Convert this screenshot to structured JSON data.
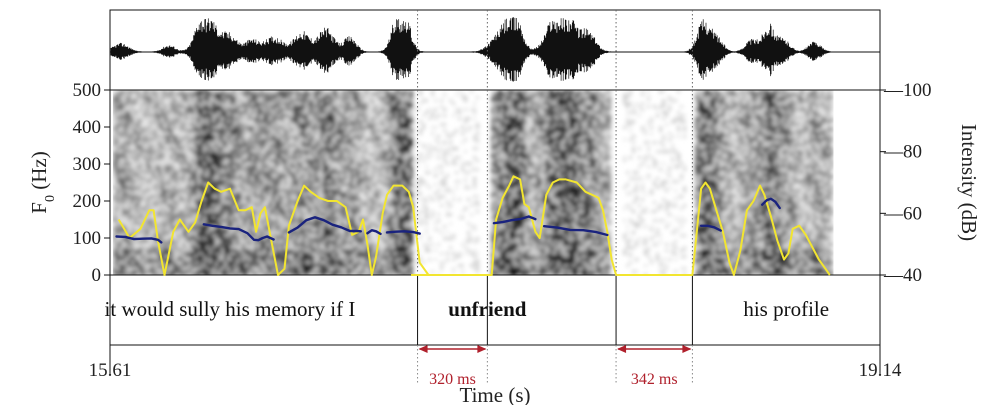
{
  "chart_data": {
    "type": "line",
    "title": "",
    "xlabel": "Time (s)",
    "ylabel_left": "F0 (Hz)",
    "ylabel_right": "Intensity (dB)",
    "xlim": [
      15.61,
      19.14
    ],
    "ylim_left": [
      0,
      500
    ],
    "ylim_right": [
      40,
      100
    ],
    "x_tick_labels": [
      "15.61",
      "19.14"
    ],
    "y_left_ticks": [
      "0",
      "100",
      "200",
      "300",
      "400",
      "500"
    ],
    "y_right_ticks": [
      "40",
      "60",
      "80",
      "100"
    ],
    "grid": false,
    "panels": [
      "waveform",
      "spectrogram",
      "word-tier"
    ],
    "colors": {
      "f0": "#1a237e",
      "intensity": "#f2e530",
      "gap_marker": "#b0202c",
      "waveform": "#111111"
    },
    "series": [
      {
        "axis": "left",
        "segments": [
          [
            [
              15.64,
              104
            ],
            [
              15.68,
              103
            ],
            [
              15.72,
              97
            ],
            [
              15.76,
              98
            ],
            [
              15.8,
              99
            ],
            [
              15.83,
              95
            ],
            [
              15.845,
              88
            ]
          ],
          [
            [
              16.04,
              137
            ],
            [
              16.08,
              133
            ],
            [
              16.12,
              130
            ],
            [
              16.16,
              126
            ],
            [
              16.2,
              124
            ],
            [
              16.24,
              113
            ],
            [
              16.27,
              95
            ],
            [
              16.29,
              94
            ],
            [
              16.31,
              100
            ],
            [
              16.33,
              104
            ],
            [
              16.36,
              96
            ]
          ],
          [
            [
              16.43,
              115
            ],
            [
              16.47,
              128
            ],
            [
              16.51,
              148
            ],
            [
              16.55,
              156
            ],
            [
              16.59,
              148
            ],
            [
              16.63,
              136
            ],
            [
              16.67,
              129
            ],
            [
              16.71,
              119
            ],
            [
              16.74,
              119
            ],
            [
              16.76,
              118
            ]
          ],
          [
            [
              16.79,
              113
            ],
            [
              16.81,
              121
            ],
            [
              16.83,
              118
            ],
            [
              16.85,
              111
            ]
          ],
          [
            [
              16.88,
              115
            ],
            [
              16.92,
              117
            ],
            [
              16.96,
              118
            ],
            [
              17.0,
              116
            ],
            [
              17.03,
              112
            ]
          ],
          [
            [
              17.37,
              140
            ],
            [
              17.41,
              143
            ],
            [
              17.45,
              148
            ],
            [
              17.49,
              151
            ],
            [
              17.53,
              158
            ],
            [
              17.56,
              151
            ]
          ],
          [
            [
              17.6,
              132
            ],
            [
              17.66,
              128
            ],
            [
              17.72,
              122
            ],
            [
              17.78,
              121
            ],
            [
              17.84,
              116
            ],
            [
              17.89,
              108
            ]
          ],
          [
            [
              18.32,
              133
            ],
            [
              18.35,
              133
            ],
            [
              18.38,
              129
            ],
            [
              18.41,
              120
            ]
          ],
          [
            [
              18.6,
              190
            ],
            [
              18.62,
              202
            ],
            [
              18.64,
              206
            ],
            [
              18.66,
              198
            ],
            [
              18.68,
              181
            ]
          ]
        ]
      },
      {
        "axis": "right",
        "points": [
          [
            15.65,
            58
          ],
          [
            15.7,
            52
          ],
          [
            15.75,
            55
          ],
          [
            15.79,
            61
          ],
          [
            15.81,
            61
          ],
          [
            15.83,
            51
          ],
          [
            15.86,
            40
          ],
          [
            15.9,
            54
          ],
          [
            15.93,
            58
          ],
          [
            15.97,
            54
          ],
          [
            16.0,
            57
          ],
          [
            16.03,
            64
          ],
          [
            16.06,
            70
          ],
          [
            16.09,
            68
          ],
          [
            16.12,
            67
          ],
          [
            16.16,
            68
          ],
          [
            16.2,
            61
          ],
          [
            16.23,
            61
          ],
          [
            16.26,
            62
          ],
          [
            16.28,
            54
          ],
          [
            16.3,
            60
          ],
          [
            16.32,
            62
          ],
          [
            16.35,
            51
          ],
          [
            16.38,
            40
          ],
          [
            16.41,
            42
          ],
          [
            16.43,
            56
          ],
          [
            16.47,
            64
          ],
          [
            16.5,
            69
          ],
          [
            16.53,
            67
          ],
          [
            16.57,
            65
          ],
          [
            16.61,
            64
          ],
          [
            16.65,
            64
          ],
          [
            16.69,
            62
          ],
          [
            16.72,
            53
          ],
          [
            16.75,
            54
          ],
          [
            16.77,
            58
          ],
          [
            16.79,
            50
          ],
          [
            16.81,
            40
          ],
          [
            16.83,
            46
          ],
          [
            16.86,
            60
          ],
          [
            16.88,
            66
          ],
          [
            16.91,
            69
          ],
          [
            16.95,
            69
          ],
          [
            16.98,
            67
          ],
          [
            17.0,
            62
          ],
          [
            17.03,
            44
          ],
          [
            17.07,
            40
          ],
          [
            17.36,
            40
          ],
          [
            17.38,
            58
          ],
          [
            17.41,
            65
          ],
          [
            17.44,
            69
          ],
          [
            17.46,
            72
          ],
          [
            17.49,
            71
          ],
          [
            17.51,
            63
          ],
          [
            17.53,
            62
          ],
          [
            17.56,
            54
          ],
          [
            17.58,
            52
          ],
          [
            17.61,
            66
          ],
          [
            17.64,
            70
          ],
          [
            17.67,
            71
          ],
          [
            17.7,
            71
          ],
          [
            17.75,
            70
          ],
          [
            17.79,
            67
          ],
          [
            17.82,
            66
          ],
          [
            17.85,
            65
          ],
          [
            17.87,
            61
          ],
          [
            17.89,
            54
          ],
          [
            17.91,
            45
          ],
          [
            17.93,
            40
          ],
          [
            18.28,
            40
          ],
          [
            18.3,
            54
          ],
          [
            18.32,
            68
          ],
          [
            18.34,
            70
          ],
          [
            18.36,
            68
          ],
          [
            18.39,
            61
          ],
          [
            18.42,
            54
          ],
          [
            18.45,
            44
          ],
          [
            18.47,
            40
          ],
          [
            18.5,
            48
          ],
          [
            18.53,
            61
          ],
          [
            18.56,
            64
          ],
          [
            18.59,
            69
          ],
          [
            18.61,
            66
          ],
          [
            18.64,
            59
          ],
          [
            18.67,
            51
          ],
          [
            18.7,
            45
          ],
          [
            18.72,
            47
          ],
          [
            18.74,
            55
          ],
          [
            18.77,
            56
          ],
          [
            18.8,
            53
          ],
          [
            18.83,
            49
          ],
          [
            18.86,
            45
          ],
          [
            18.89,
            42
          ],
          [
            18.91,
            40
          ]
        ]
      }
    ],
    "words": [
      {
        "text": "it would sully his memory if I",
        "start": 15.61,
        "end": 16.71,
        "bold": false
      },
      {
        "text": "unfriend",
        "start": 17.02,
        "end": 17.66,
        "bold": true
      },
      {
        "text": "his profile",
        "start": 18.28,
        "end": 19.14,
        "bold": false
      }
    ],
    "pauses": [
      {
        "label": "320 ms",
        "start": 17.02,
        "end": 17.34
      },
      {
        "label": "342 ms",
        "start": 17.93,
        "end": 18.28
      }
    ]
  }
}
